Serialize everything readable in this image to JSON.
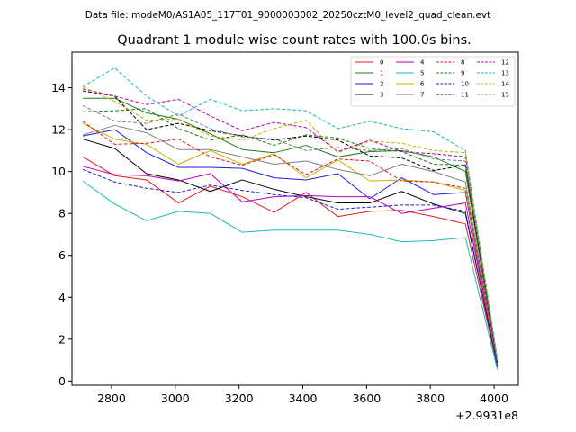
{
  "figure": {
    "suptitle": "Data file: modeM0/AS1A05_117T01_9000003002_20250cztM0_level2_quad_clean.evt"
  },
  "chart_data": {
    "type": "line",
    "title": "Quadrant 1 module wise count rates with 100.0s bins.",
    "xlabel": "",
    "ylabel": "",
    "x_offset_label": "+2.9931e8",
    "xlim": [
      2676,
      4076
    ],
    "ylim": [
      -0.2,
      15.7
    ],
    "x_ticks": [
      2800,
      3000,
      3200,
      3400,
      3600,
      3800,
      4000
    ],
    "y_ticks": [
      0,
      2,
      4,
      6,
      8,
      10,
      12,
      14
    ],
    "x": [
      2710,
      2810,
      2910,
      3010,
      3110,
      3210,
      3310,
      3410,
      3510,
      3610,
      3710,
      3810,
      3910,
      4010
    ],
    "legend_position": "top-right",
    "series": [
      {
        "name": "0",
        "color": "#e41a1c",
        "dash": "solid",
        "values": [
          10.7,
          9.8,
          9.6,
          8.5,
          9.3,
          8.8,
          8.05,
          9.0,
          7.85,
          8.1,
          8.15,
          7.85,
          7.5,
          0.7
        ]
      },
      {
        "name": "1",
        "color": "#1a7f1a",
        "dash": "solid",
        "values": [
          13.5,
          13.5,
          12.8,
          12.5,
          11.8,
          11.05,
          10.9,
          11.25,
          10.7,
          10.95,
          11.0,
          10.7,
          10.0,
          0.9
        ]
      },
      {
        "name": "2",
        "color": "#1f1fd6",
        "dash": "solid",
        "values": [
          11.7,
          12.0,
          10.9,
          10.2,
          10.2,
          10.15,
          9.7,
          9.6,
          9.9,
          8.7,
          9.7,
          8.9,
          9.0,
          0.65
        ]
      },
      {
        "name": "3",
        "color": "#000000",
        "dash": "solid",
        "values": [
          11.55,
          11.1,
          9.9,
          9.6,
          9.05,
          9.6,
          9.15,
          8.8,
          8.5,
          8.5,
          9.05,
          8.45,
          8.0,
          0.75
        ]
      },
      {
        "name": "4",
        "color": "#bb00bb",
        "dash": "solid",
        "values": [
          10.25,
          9.85,
          9.8,
          9.55,
          9.9,
          8.55,
          8.8,
          8.85,
          8.8,
          8.8,
          8.0,
          8.25,
          8.5,
          0.85
        ]
      },
      {
        "name": "5",
        "color": "#1ab8b8",
        "dash": "solid",
        "values": [
          9.55,
          8.45,
          7.65,
          8.1,
          8.0,
          7.1,
          7.2,
          7.2,
          7.2,
          7.0,
          6.65,
          6.7,
          6.85,
          0.55
        ]
      },
      {
        "name": "6",
        "color": "#c8b400",
        "dash": "solid",
        "values": [
          12.3,
          11.55,
          11.3,
          10.35,
          11.0,
          10.35,
          10.85,
          9.7,
          10.55,
          9.55,
          9.6,
          9.5,
          9.1,
          0.8
        ]
      },
      {
        "name": "7",
        "color": "#808080",
        "dash": "solid",
        "values": [
          11.75,
          12.2,
          11.85,
          11.05,
          11.05,
          10.7,
          10.35,
          10.5,
          10.1,
          9.8,
          10.35,
          10.0,
          9.5,
          0.8
        ]
      },
      {
        "name": "8",
        "color": "#e41a1c",
        "dash": "dashed",
        "values": [
          12.4,
          11.3,
          11.35,
          11.55,
          10.7,
          10.3,
          10.8,
          9.85,
          10.6,
          10.5,
          9.55,
          9.5,
          9.2,
          0.9
        ]
      },
      {
        "name": "9",
        "color": "#1a7f1a",
        "dash": "dashed",
        "values": [
          12.85,
          12.9,
          13.0,
          12.05,
          11.5,
          11.75,
          11.25,
          11.75,
          11.6,
          11.1,
          10.95,
          10.35,
          10.3,
          1.0
        ]
      },
      {
        "name": "10",
        "color": "#1f1fd6",
        "dash": "dashed",
        "values": [
          10.1,
          9.5,
          9.2,
          9.0,
          9.35,
          9.1,
          8.9,
          8.75,
          8.2,
          8.3,
          8.4,
          8.4,
          8.1,
          0.75
        ]
      },
      {
        "name": "11",
        "color": "#000000",
        "dash": "dashed",
        "values": [
          13.85,
          13.6,
          12.0,
          12.3,
          11.95,
          11.7,
          11.5,
          11.7,
          11.5,
          10.75,
          10.65,
          10.05,
          10.3,
          0.9
        ]
      },
      {
        "name": "12",
        "color": "#bb00bb",
        "dash": "dashed",
        "values": [
          13.95,
          13.6,
          13.2,
          13.45,
          12.65,
          11.95,
          12.35,
          12.1,
          10.95,
          11.5,
          10.95,
          10.85,
          10.7,
          1.05
        ]
      },
      {
        "name": "13",
        "color": "#1ab8b8",
        "dash": "dashed",
        "values": [
          14.05,
          14.95,
          13.6,
          12.65,
          13.45,
          12.9,
          13.0,
          12.9,
          12.05,
          12.4,
          12.05,
          11.9,
          11.0,
          1.1
        ]
      },
      {
        "name": "14",
        "color": "#c8b400",
        "dash": "dashed",
        "values": [
          14.05,
          13.35,
          12.45,
          12.5,
          11.7,
          11.5,
          12.05,
          12.45,
          10.9,
          11.45,
          11.35,
          11.0,
          10.9,
          1.0
        ]
      },
      {
        "name": "15",
        "color": "#808080",
        "dash": "dashed",
        "values": [
          13.15,
          12.4,
          12.3,
          12.75,
          12.05,
          11.65,
          11.55,
          11.0,
          11.15,
          11.0,
          11.1,
          10.6,
          10.5,
          0.95
        ]
      }
    ]
  }
}
